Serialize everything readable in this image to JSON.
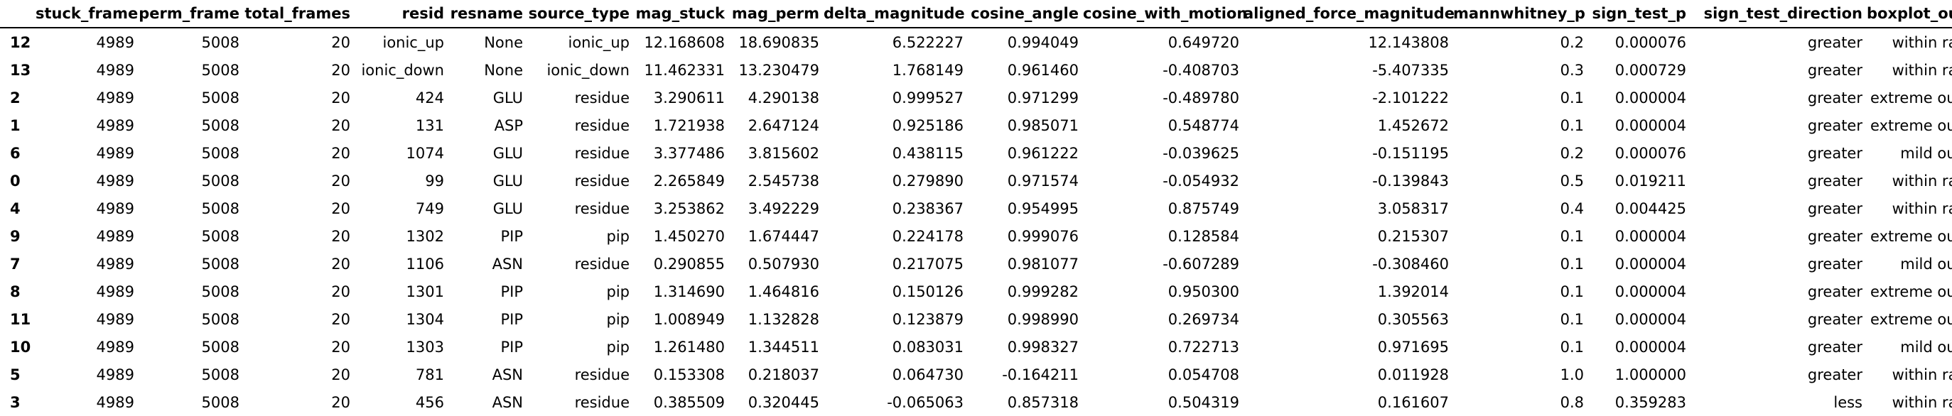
{
  "table": {
    "columns": [
      "",
      "stuck_frame",
      "perm_frame",
      "total_frames",
      "resid",
      "resname",
      "source_type",
      "mag_stuck",
      "mag_perm",
      "delta_magnitude",
      "cosine_angle",
      "cosine_with_motion",
      "aligned_force_magnitude",
      "mannwhitney_p",
      "sign_test_p",
      "sign_test_direction",
      "boxplot_outlier"
    ],
    "rows": [
      [
        "12",
        "4989",
        "5008",
        "20",
        "ionic_up",
        "None",
        "ionic_up",
        "12.168608",
        "18.690835",
        "6.522227",
        "0.994049",
        "0.649720",
        "12.143808",
        "0.2",
        "0.000076",
        "greater",
        "within range"
      ],
      [
        "13",
        "4989",
        "5008",
        "20",
        "ionic_down",
        "None",
        "ionic_down",
        "11.462331",
        "13.230479",
        "1.768149",
        "0.961460",
        "-0.408703",
        "-5.407335",
        "0.3",
        "0.000729",
        "greater",
        "within range"
      ],
      [
        "2",
        "4989",
        "5008",
        "20",
        "424",
        "GLU",
        "residue",
        "3.290611",
        "4.290138",
        "0.999527",
        "0.971299",
        "-0.489780",
        "-2.101222",
        "0.1",
        "0.000004",
        "greater",
        "extreme outlier"
      ],
      [
        "1",
        "4989",
        "5008",
        "20",
        "131",
        "ASP",
        "residue",
        "1.721938",
        "2.647124",
        "0.925186",
        "0.985071",
        "0.548774",
        "1.452672",
        "0.1",
        "0.000004",
        "greater",
        "extreme outlier"
      ],
      [
        "6",
        "4989",
        "5008",
        "20",
        "1074",
        "GLU",
        "residue",
        "3.377486",
        "3.815602",
        "0.438115",
        "0.961222",
        "-0.039625",
        "-0.151195",
        "0.2",
        "0.000076",
        "greater",
        "mild outlier"
      ],
      [
        "0",
        "4989",
        "5008",
        "20",
        "99",
        "GLU",
        "residue",
        "2.265849",
        "2.545738",
        "0.279890",
        "0.971574",
        "-0.054932",
        "-0.139843",
        "0.5",
        "0.019211",
        "greater",
        "within range"
      ],
      [
        "4",
        "4989",
        "5008",
        "20",
        "749",
        "GLU",
        "residue",
        "3.253862",
        "3.492229",
        "0.238367",
        "0.954995",
        "0.875749",
        "3.058317",
        "0.4",
        "0.004425",
        "greater",
        "within range"
      ],
      [
        "9",
        "4989",
        "5008",
        "20",
        "1302",
        "PIP",
        "pip",
        "1.450270",
        "1.674447",
        "0.224178",
        "0.999076",
        "0.128584",
        "0.215307",
        "0.1",
        "0.000004",
        "greater",
        "extreme outlier"
      ],
      [
        "7",
        "4989",
        "5008",
        "20",
        "1106",
        "ASN",
        "residue",
        "0.290855",
        "0.507930",
        "0.217075",
        "0.981077",
        "-0.607289",
        "-0.308460",
        "0.1",
        "0.000004",
        "greater",
        "mild outlier"
      ],
      [
        "8",
        "4989",
        "5008",
        "20",
        "1301",
        "PIP",
        "pip",
        "1.314690",
        "1.464816",
        "0.150126",
        "0.999282",
        "0.950300",
        "1.392014",
        "0.1",
        "0.000004",
        "greater",
        "extreme outlier"
      ],
      [
        "11",
        "4989",
        "5008",
        "20",
        "1304",
        "PIP",
        "pip",
        "1.008949",
        "1.132828",
        "0.123879",
        "0.998990",
        "0.269734",
        "0.305563",
        "0.1",
        "0.000004",
        "greater",
        "extreme outlier"
      ],
      [
        "10",
        "4989",
        "5008",
        "20",
        "1303",
        "PIP",
        "pip",
        "1.261480",
        "1.344511",
        "0.083031",
        "0.998327",
        "0.722713",
        "0.971695",
        "0.1",
        "0.000004",
        "greater",
        "mild outlier"
      ],
      [
        "5",
        "4989",
        "5008",
        "20",
        "781",
        "ASN",
        "residue",
        "0.153308",
        "0.218037",
        "0.064730",
        "-0.164211",
        "0.054708",
        "0.011928",
        "1.0",
        "1.000000",
        "greater",
        "within range"
      ],
      [
        "3",
        "4989",
        "5008",
        "20",
        "456",
        "ASN",
        "residue",
        "0.385509",
        "0.320445",
        "-0.065063",
        "0.857318",
        "0.504319",
        "0.161607",
        "0.8",
        "0.359283",
        "less",
        "within range"
      ]
    ]
  }
}
